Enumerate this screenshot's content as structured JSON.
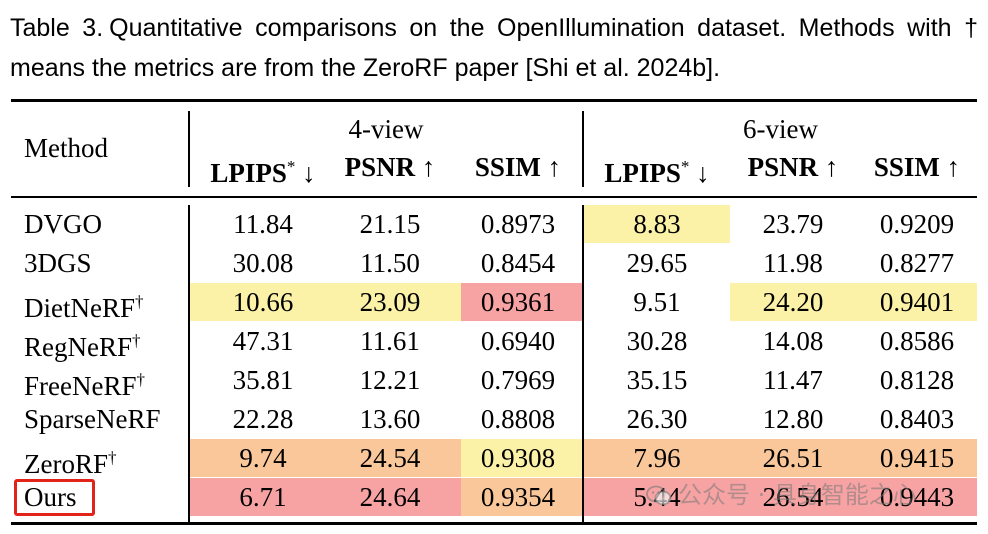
{
  "caption": {
    "label": "Table 3.",
    "text": "Quantitative comparisons on the OpenIllumination dataset. Methods with † means the metrics are from the ZeroRF paper [Shi et al. 2024b]."
  },
  "table": {
    "method_header": "Method",
    "groups": [
      "4-view",
      "6-view"
    ],
    "metrics": [
      "LPIPS* ↓",
      "PSNR ↑",
      "SSIM ↑",
      "LPIPS* ↓",
      "PSNR ↑",
      "SSIM ↑"
    ],
    "rows": [
      {
        "method": "DVGO",
        "values": [
          "11.84",
          "21.15",
          "0.8973",
          "8.83",
          "23.79",
          "0.9209"
        ]
      },
      {
        "method": "3DGS",
        "values": [
          "30.08",
          "11.50",
          "0.8454",
          "29.65",
          "11.98",
          "0.8277"
        ]
      },
      {
        "method": "DietNeRF†",
        "values": [
          "10.66",
          "23.09",
          "0.9361",
          "9.51",
          "24.20",
          "0.9401"
        ]
      },
      {
        "method": "RegNeRF†",
        "values": [
          "47.31",
          "11.61",
          "0.6940",
          "30.28",
          "14.08",
          "0.8586"
        ]
      },
      {
        "method": "FreeNeRF†",
        "values": [
          "35.81",
          "12.21",
          "0.7969",
          "35.15",
          "11.47",
          "0.8128"
        ]
      },
      {
        "method": "SparseNeRF",
        "values": [
          "22.28",
          "13.60",
          "0.8808",
          "26.30",
          "12.80",
          "0.8403"
        ]
      },
      {
        "method": "ZeroRF†",
        "values": [
          "9.74",
          "24.54",
          "0.9308",
          "7.96",
          "26.51",
          "0.9415"
        ]
      },
      {
        "method": "Ours",
        "values": [
          "6.71",
          "24.64",
          "0.9354",
          "5.44",
          "26.54",
          "0.9443"
        ]
      }
    ],
    "highlight_colors": {
      "first": "#f8a3a3",
      "second": "#f9c79a",
      "third": "#fbf2a8"
    },
    "highlights": [
      {
        "row": 0,
        "col": 3,
        "rank": "third"
      },
      {
        "row": 2,
        "col": 0,
        "rank": "third"
      },
      {
        "row": 2,
        "col": 1,
        "rank": "third"
      },
      {
        "row": 2,
        "col": 2,
        "rank": "first"
      },
      {
        "row": 2,
        "col": 4,
        "rank": "third"
      },
      {
        "row": 2,
        "col": 5,
        "rank": "third"
      },
      {
        "row": 6,
        "col": 0,
        "rank": "second"
      },
      {
        "row": 6,
        "col": 1,
        "rank": "second"
      },
      {
        "row": 6,
        "col": 2,
        "rank": "third"
      },
      {
        "row": 6,
        "col": 3,
        "rank": "second"
      },
      {
        "row": 6,
        "col": 4,
        "rank": "second"
      },
      {
        "row": 6,
        "col": 5,
        "rank": "second"
      },
      {
        "row": 7,
        "col": 0,
        "rank": "first"
      },
      {
        "row": 7,
        "col": 1,
        "rank": "first"
      },
      {
        "row": 7,
        "col": 2,
        "rank": "second"
      },
      {
        "row": 7,
        "col": 3,
        "rank": "first"
      },
      {
        "row": 7,
        "col": 4,
        "rank": "first"
      },
      {
        "row": 7,
        "col": 5,
        "rank": "first"
      }
    ],
    "boxed_method": "Ours",
    "box_color": "#e2231a"
  },
  "watermark": {
    "icon": "wechat-icon",
    "text": "公众号 · 具身智能之心"
  }
}
